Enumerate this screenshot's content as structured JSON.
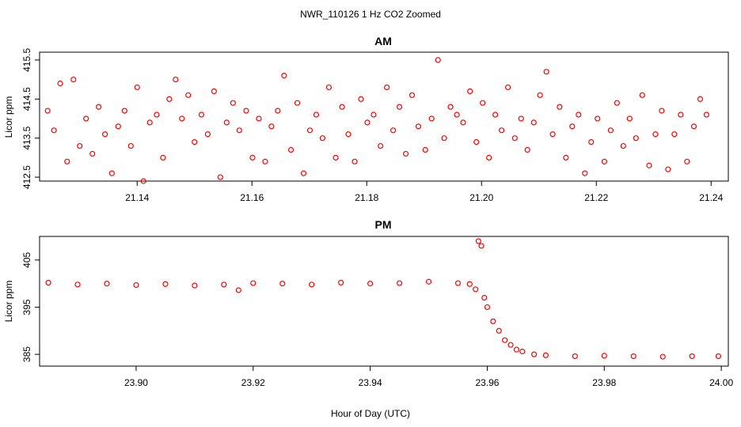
{
  "figure": {
    "main_title": "NWR_110126  1 Hz CO2 Zoomed",
    "common_xlabel": "Hour of Day (UTC)"
  },
  "colors": {
    "points": "#ff0000",
    "axes": "#000000"
  },
  "chart_data": [
    {
      "type": "scatter",
      "title": "AM",
      "ylabel": "Licor ppm",
      "xlim": [
        21.123,
        21.243
      ],
      "ylim": [
        412.4,
        415.7
      ],
      "xticks": [
        21.14,
        21.16,
        21.18,
        21.2,
        21.22,
        21.24
      ],
      "xtick_labels": [
        "21.14",
        "21.16",
        "21.18",
        "21.20",
        "21.22",
        "21.24"
      ],
      "yticks": [
        412.5,
        413.5,
        414.5,
        415.5
      ],
      "ytick_labels": [
        "412.5",
        "413.5",
        "414.5",
        "415.5"
      ],
      "x": [
        21.1244,
        21.1255,
        21.1266,
        21.1278,
        21.1289,
        21.13,
        21.1311,
        21.1322,
        21.1333,
        21.1344,
        21.1356,
        21.1367,
        21.1378,
        21.1389,
        21.14,
        21.1411,
        21.1422,
        21.1434,
        21.1445,
        21.1456,
        21.1467,
        21.1478,
        21.1489,
        21.15,
        21.1512,
        21.1523,
        21.1534,
        21.1545,
        21.1556,
        21.1567,
        21.1578,
        21.159,
        21.1601,
        21.1612,
        21.1623,
        21.1634,
        21.1645,
        21.1656,
        21.1668,
        21.1679,
        21.169,
        21.1701,
        21.1712,
        21.1723,
        21.1734,
        21.1746,
        21.1757,
        21.1768,
        21.1779,
        21.179,
        21.1801,
        21.1812,
        21.1824,
        21.1835,
        21.1846,
        21.1857,
        21.1868,
        21.1879,
        21.189,
        21.1902,
        21.1913,
        21.1924,
        21.1935,
        21.1946,
        21.1957,
        21.1968,
        21.198,
        21.1991,
        21.2002,
        21.2013,
        21.2024,
        21.2035,
        21.2046,
        21.2058,
        21.2069,
        21.208,
        21.2091,
        21.2102,
        21.2113,
        21.2124,
        21.2136,
        21.2147,
        21.2158,
        21.2169,
        21.218,
        21.2191,
        21.2202,
        21.2214,
        21.2225,
        21.2236,
        21.2247,
        21.2258,
        21.2269,
        21.228,
        21.2292,
        21.2303,
        21.2314,
        21.2325,
        21.2336,
        21.2347,
        21.2358,
        21.237,
        21.2381,
        21.2392
      ],
      "y": [
        414.2,
        413.7,
        414.9,
        412.9,
        415,
        413.3,
        414,
        413.1,
        414.3,
        413.6,
        412.6,
        413.8,
        414.2,
        413.3,
        414.8,
        412.4,
        413.9,
        414.1,
        413.0,
        414.5,
        415.0,
        414.0,
        414.6,
        413.4,
        414.1,
        413.6,
        414.7,
        412.5,
        413.9,
        414.4,
        413.7,
        414.2,
        413.0,
        414.0,
        412.9,
        413.8,
        414.2,
        415.1,
        413.2,
        414.4,
        412.6,
        413.7,
        414.1,
        413.5,
        414.8,
        413.0,
        414.3,
        413.6,
        412.9,
        414.5,
        413.9,
        414.1,
        413.3,
        414.8,
        413.7,
        414.3,
        413.1,
        414.6,
        413.8,
        413.2,
        414.0,
        415.5,
        413.5,
        414.3,
        414.1,
        413.9,
        414.7,
        413.4,
        414.4,
        413.0,
        414.1,
        413.7,
        414.8,
        413.5,
        414.0,
        413.2,
        413.9,
        414.6,
        415.2,
        413.6,
        414.3,
        413.0,
        413.8,
        414.1,
        412.6,
        413.4,
        414.0,
        412.9,
        413.7,
        414.4,
        413.3,
        414.0,
        413.5,
        414.6,
        412.8,
        413.6,
        414.2,
        412.7,
        413.6,
        414.1,
        412.9,
        413.8,
        414.5,
        414.1
      ]
    },
    {
      "type": "scatter",
      "title": "PM",
      "ylabel": "Licor ppm",
      "xlim": [
        23.8835,
        24.0012
      ],
      "ylim": [
        382.5,
        410.0
      ],
      "xticks": [
        23.9,
        23.92,
        23.94,
        23.96,
        23.98,
        24.0
      ],
      "xtick_labels": [
        "23.90",
        "23.92",
        "23.94",
        "23.96",
        "23.98",
        "24.00"
      ],
      "yticks": [
        385,
        395,
        405
      ],
      "ytick_labels": [
        "385",
        "395",
        "405"
      ],
      "x": [
        23.885,
        23.89,
        23.895,
        23.9,
        23.905,
        23.91,
        23.915,
        23.9175,
        23.92,
        23.925,
        23.93,
        23.935,
        23.94,
        23.945,
        23.95,
        23.955,
        23.957,
        23.958,
        23.9585,
        23.959,
        23.9595,
        23.96,
        23.961,
        23.962,
        23.963,
        23.964,
        23.965,
        23.966,
        23.968,
        23.97,
        23.975,
        23.98,
        23.985,
        23.99,
        23.995,
        23.9995
      ],
      "y": [
        400.2,
        399.8,
        400.0,
        399.7,
        399.9,
        399.6,
        399.8,
        398.6,
        400.1,
        400.0,
        399.8,
        400.2,
        400.0,
        400.1,
        400.4,
        400.1,
        399.9,
        398.8,
        409.0,
        408.0,
        397.0,
        395.0,
        392.0,
        390.0,
        388.0,
        387.0,
        386.0,
        385.6,
        385.0,
        384.8,
        384.6,
        384.7,
        384.6,
        384.5,
        384.6,
        384.6
      ]
    }
  ]
}
